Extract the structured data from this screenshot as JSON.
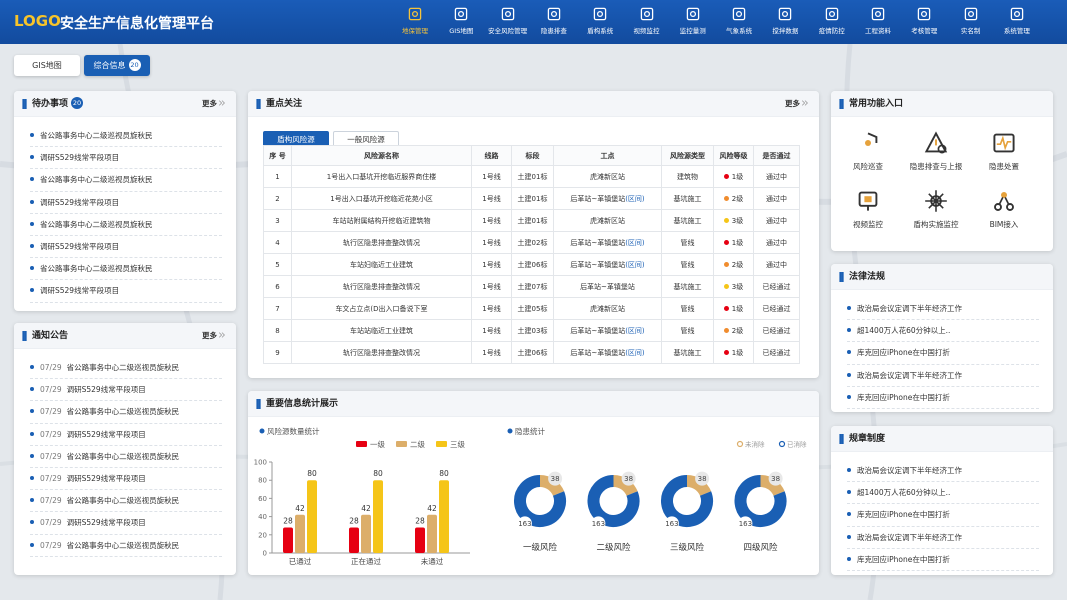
{
  "header": {
    "logo": "LOGO",
    "title": "安全生产信息化管理平台",
    "active": 0,
    "nav": [
      "地保管理",
      "GIS地图",
      "安全风险管理",
      "隐患排查",
      "盾构系统",
      "视频监控",
      "监控量测",
      "气象系统",
      "搅拌数据",
      "疫情防控",
      "工程资料",
      "考核管理",
      "实名制",
      "系统管理"
    ]
  },
  "tabs": {
    "items": [
      "GIS地图",
      "综合信息"
    ],
    "badge": 20,
    "active": 1
  },
  "todo": {
    "title": "待办事项",
    "badge": 20,
    "more": "更多",
    "items": [
      "省公路事务中心二级巡视员旋秋民",
      "调研S529线常平段项目",
      "省公路事务中心二级巡视员旋秋民",
      "调研S529线常平段项目",
      "省公路事务中心二级巡视员旋秋民",
      "调研S529线常平段项目",
      "省公路事务中心二级巡视员旋秋民",
      "调研S529线常平段项目"
    ]
  },
  "notice": {
    "title": "通知公告",
    "more": "更多",
    "items": [
      {
        "date": "07/29",
        "text": "省公路事务中心二级巡视员旋秋民"
      },
      {
        "date": "07/29",
        "text": "调研S529线常平段项目"
      },
      {
        "date": "07/29",
        "text": "省公路事务中心二级巡视员旋秋民"
      },
      {
        "date": "07/29",
        "text": "调研S529线常平段项目"
      },
      {
        "date": "07/29",
        "text": "省公路事务中心二级巡视员旋秋民"
      },
      {
        "date": "07/29",
        "text": "调研S529线常平段项目"
      },
      {
        "date": "07/29",
        "text": "省公路事务中心二级巡视员旋秋民"
      },
      {
        "date": "07/29",
        "text": "调研S529线常平段项目"
      },
      {
        "date": "07/29",
        "text": "省公路事务中心二级巡视员旋秋民"
      }
    ]
  },
  "focus": {
    "title": "重点关注",
    "more": "更多",
    "tabs": [
      "盾构风险源",
      "一般风险源"
    ],
    "active": 0,
    "columns": [
      "序 号",
      "风险源名称",
      "线路",
      "标段",
      "工点",
      "风险源类型",
      "风险等级",
      "是否通过"
    ],
    "level_colors": {
      "1级": "#e60012",
      "2级": "#f08c2e",
      "3级": "#f5c518"
    },
    "rows": [
      [
        1,
        "1号出入口基坑开挖临近服界商住楼",
        "1号线",
        "土建01标",
        {
          "text": "虎滩新区站"
        },
        "建筑物",
        "1级",
        "通过中"
      ],
      [
        2,
        "1号出入口基坑开挖临近花苑小区",
        "1号线",
        "土建01标",
        {
          "text": "后革站~革镇堡站",
          "tag": "(区间)"
        },
        "基坑施工",
        "2级",
        "通过中"
      ],
      [
        3,
        "车站站附属结构开挖临近建筑物",
        "1号线",
        "土建01标",
        {
          "text": "虎滩新区站"
        },
        "基坑施工",
        "3级",
        "通过中"
      ],
      [
        4,
        "轨行区隐患排查整改情况",
        "1号线",
        "土建02标",
        {
          "text": "后革站~革镇堡站",
          "tag": "(区间)"
        },
        "管线",
        "1级",
        "通过中"
      ],
      [
        5,
        "车站妇临近工业建筑",
        "1号线",
        "土建06标",
        {
          "text": "后革站~革镇堡站",
          "tag": "(区间)"
        },
        "管线",
        "2级",
        "通过中"
      ],
      [
        6,
        "轨行区隐患排查整改情况",
        "1号线",
        "土建07标",
        {
          "text": "后革站~革镇堡站"
        },
        "基坑施工",
        "3级",
        "已经通过"
      ],
      [
        7,
        "车文占立点(D出入口备说下室",
        "1号线",
        "土建05标",
        {
          "text": "虎滩新区站"
        },
        "管线",
        "1级",
        "已经通过"
      ],
      [
        8,
        "车站站临近工业建筑",
        "1号线",
        "土建03标",
        {
          "text": "后革站~革镇堡站",
          "tag": "(区间)"
        },
        "管线",
        "2级",
        "已经通过"
      ],
      [
        9,
        "轨行区隐患排查整改情况",
        "1号线",
        "土建06标",
        {
          "text": "后革站~革镇堡站",
          "tag": "(区间)"
        },
        "基坑施工",
        "1级",
        "已经通过"
      ]
    ]
  },
  "stats": {
    "title": "重要信息统计展示",
    "bar": {
      "type": "bar",
      "subtitle": "风险源数量统计",
      "categories": [
        "已通过",
        "正在通过",
        "未通过"
      ],
      "series": [
        {
          "name": "一级",
          "color": "#e60012",
          "values": [
            28,
            28,
            28
          ]
        },
        {
          "name": "二级",
          "color": "#dcae6a",
          "values": [
            42,
            42,
            42
          ]
        },
        {
          "name": "三级",
          "color": "#f5c518",
          "values": [
            80,
            80,
            80
          ]
        }
      ],
      "ylim": [
        0,
        100
      ],
      "yticks": [
        0,
        20,
        40,
        60,
        80,
        100
      ]
    },
    "donut": {
      "type": "donut",
      "subtitle": "隐患统计",
      "categories": [
        "一级风险",
        "二级风险",
        "三级风险",
        "四级风险"
      ],
      "series": [
        {
          "name": "未消除",
          "color": "#dcae6a",
          "values": [
            38,
            38,
            38,
            38
          ]
        },
        {
          "name": "已消除",
          "color": "#1a5fb4",
          "values": [
            163,
            163,
            163,
            163
          ]
        }
      ]
    }
  },
  "quick": {
    "title": "常用功能入口",
    "items": [
      "风险巡查",
      "隐患排查与上报",
      "隐患处置",
      "视频监控",
      "盾构实施监控",
      "BIM接入"
    ]
  },
  "law": {
    "title": "法律法规",
    "items": [
      "政治局会议定调下半年经济工作",
      "超1400万人花60分钟以上..",
      "库克回应iPhone在中国打折",
      "政治局会议定调下半年经济工作",
      "库克回应iPhone在中国打折"
    ]
  },
  "rules": {
    "title": "规章制度",
    "items": [
      "政治局会议定调下半年经济工作",
      "超1400万人花60分钟以上..",
      "库克回应iPhone在中国打折",
      "政治局会议定调下半年经济工作",
      "库克回应iPhone在中国打折"
    ]
  }
}
